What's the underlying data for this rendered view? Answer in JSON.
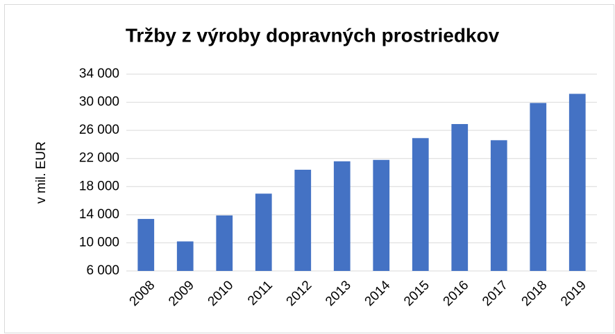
{
  "chart_data": {
    "type": "bar",
    "title": "Tržby z výroby dopravných prostriedkov",
    "y_axis_label": "v mil. EUR",
    "categories": [
      "2008",
      "2009",
      "2010",
      "2011",
      "2012",
      "2013",
      "2014",
      "2015",
      "2016",
      "2017",
      "2018",
      "2019"
    ],
    "values": [
      13400,
      10200,
      13900,
      17000,
      20400,
      21600,
      21800,
      24900,
      26900,
      24600,
      29900,
      31200
    ],
    "color": "#4472c4",
    "ylim": [
      6000,
      34000
    ],
    "yticks": [
      {
        "value": 6000,
        "label": "6 000"
      },
      {
        "value": 10000,
        "label": "10 000"
      },
      {
        "value": 14000,
        "label": "14 000"
      },
      {
        "value": 18000,
        "label": "18 000"
      },
      {
        "value": 22000,
        "label": "22 000"
      },
      {
        "value": 26000,
        "label": "26 000"
      },
      {
        "value": 30000,
        "label": "30 000"
      },
      {
        "value": 34000,
        "label": "34 000"
      }
    ],
    "grid": true
  }
}
